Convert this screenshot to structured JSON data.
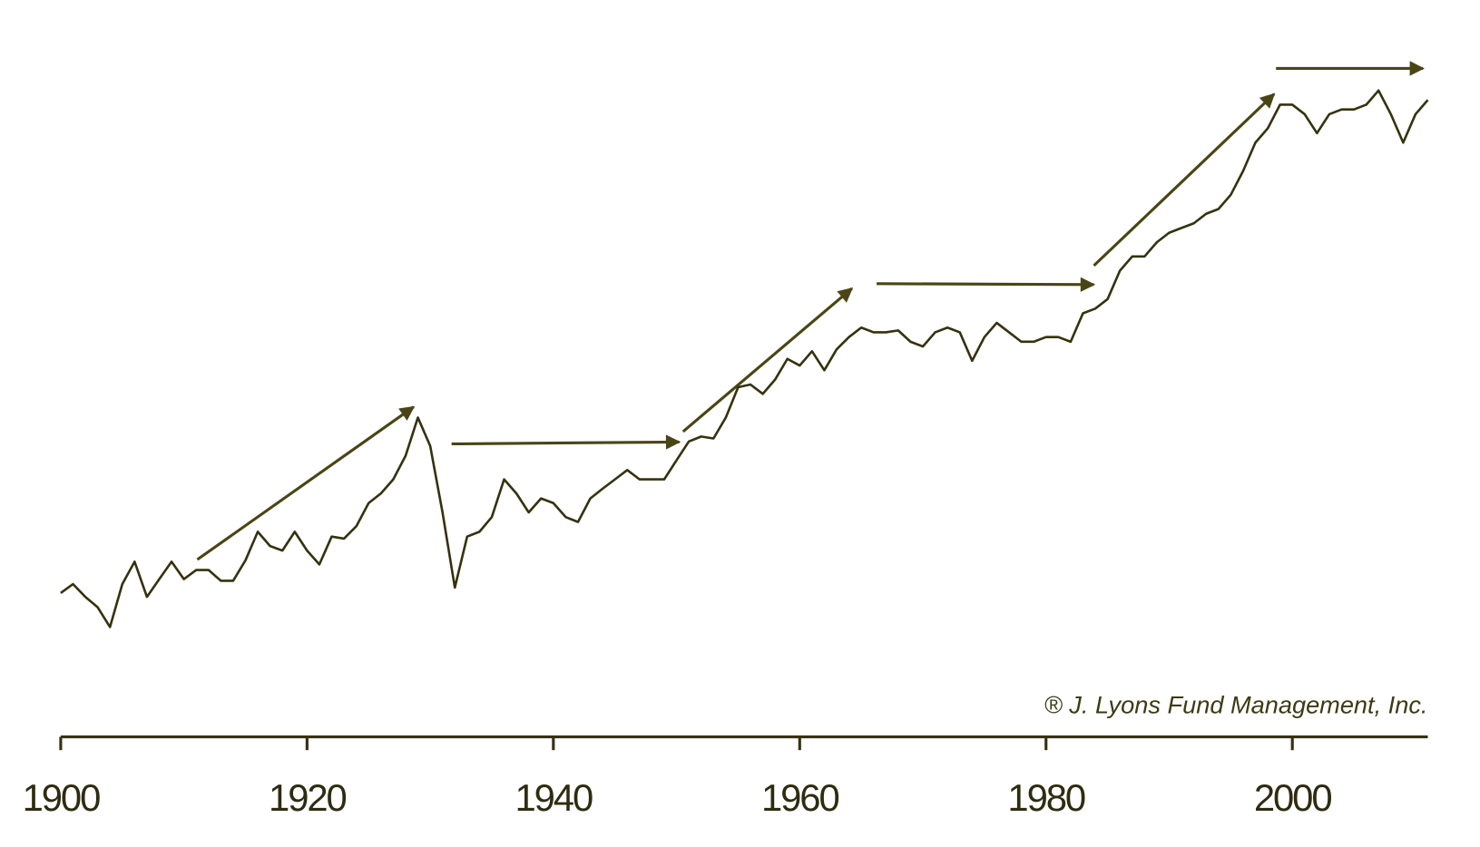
{
  "chart_data": {
    "type": "line",
    "annotation": "® J. Lyons Fund Management, Inc.",
    "color": "#35320f",
    "log_scale": true,
    "xlim": [
      1900,
      2011
    ],
    "xticks": [
      1900,
      1920,
      1940,
      1960,
      1980,
      2000
    ],
    "ylim": [
      20,
      30000
    ],
    "x": [
      1900,
      1901,
      1902,
      1903,
      1904,
      1905,
      1906,
      1907,
      1908,
      1909,
      1910,
      1911,
      1912,
      1913,
      1914,
      1915,
      1916,
      1917,
      1918,
      1919,
      1920,
      1921,
      1922,
      1923,
      1924,
      1925,
      1926,
      1927,
      1928,
      1929,
      1930,
      1931,
      1932,
      1933,
      1934,
      1935,
      1936,
      1937,
      1938,
      1939,
      1940,
      1941,
      1942,
      1943,
      1944,
      1945,
      1946,
      1947,
      1948,
      1949,
      1950,
      1951,
      1952,
      1953,
      1954,
      1955,
      1956,
      1957,
      1958,
      1959,
      1960,
      1961,
      1962,
      1963,
      1964,
      1965,
      1966,
      1967,
      1968,
      1969,
      1970,
      1971,
      1972,
      1973,
      1974,
      1975,
      1976,
      1977,
      1978,
      1979,
      1980,
      1981,
      1982,
      1983,
      1984,
      1985,
      1986,
      1987,
      1988,
      1989,
      1990,
      1991,
      1992,
      1993,
      1994,
      1995,
      1996,
      1997,
      1998,
      1999,
      2000,
      2001,
      2002,
      2003,
      2004,
      2005,
      2006,
      2007,
      2008,
      2009,
      2010,
      2011
    ],
    "values": [
      47,
      52,
      45,
      40,
      32,
      52,
      67,
      45,
      55,
      67,
      55,
      61,
      61,
      54,
      54,
      68,
      94,
      80,
      76,
      94,
      76,
      65,
      89,
      87,
      100,
      130,
      145,
      170,
      222,
      342,
      248,
      117,
      50,
      89,
      94,
      111,
      170,
      145,
      117,
      137,
      130,
      111,
      105,
      137,
      153,
      170,
      189,
      170,
      170,
      170,
      211,
      261,
      276,
      270,
      342,
      482,
      497,
      447,
      525,
      664,
      616,
      724,
      584,
      740,
      850,
      946,
      897,
      897,
      916,
      806,
      764,
      897,
      946,
      897,
      650,
      850,
      998,
      897,
      806,
      806,
      850,
      850,
      806,
      1112,
      1173,
      1306,
      1801,
      2115,
      2115,
      2484,
      2767,
      2919,
      3078,
      3428,
      3617,
      4248,
      5555,
      7664,
      9000,
      11768,
      11768,
      10568,
      8532,
      10568,
      11152,
      11152,
      11768,
      13820,
      10568,
      7664,
      10568,
      12416
    ]
  }
}
